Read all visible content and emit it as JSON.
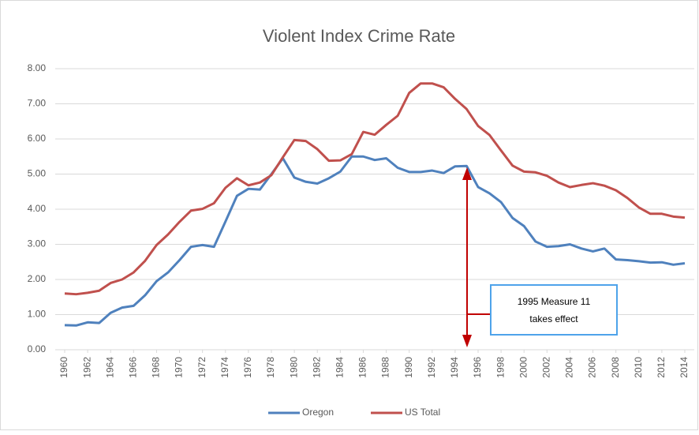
{
  "chart_data": {
    "type": "line",
    "title": "Violent Index Crime Rate",
    "x": [
      1960,
      1961,
      1962,
      1963,
      1964,
      1965,
      1966,
      1967,
      1968,
      1969,
      1970,
      1971,
      1972,
      1973,
      1974,
      1975,
      1976,
      1977,
      1978,
      1979,
      1980,
      1981,
      1982,
      1983,
      1984,
      1985,
      1986,
      1987,
      1988,
      1989,
      1990,
      1991,
      1992,
      1993,
      1994,
      1995,
      1996,
      1997,
      1998,
      1999,
      2000,
      2001,
      2002,
      2003,
      2004,
      2005,
      2006,
      2007,
      2008,
      2009,
      2010,
      2011,
      2012,
      2013,
      2014
    ],
    "series": [
      {
        "name": "Oregon",
        "color": "#4f81bd",
        "values": [
          0.7,
          0.69,
          0.78,
          0.76,
          1.05,
          1.2,
          1.25,
          1.55,
          1.95,
          2.2,
          2.55,
          2.93,
          2.98,
          2.93,
          3.65,
          4.38,
          4.58,
          4.56,
          5.0,
          5.45,
          4.9,
          4.78,
          4.73,
          4.88,
          5.07,
          5.5,
          5.5,
          5.4,
          5.45,
          5.18,
          5.06,
          5.06,
          5.1,
          5.03,
          5.22,
          5.23,
          4.63,
          4.45,
          4.2,
          3.75,
          3.52,
          3.08,
          2.93,
          2.95,
          3.0,
          2.88,
          2.8,
          2.88,
          2.57,
          2.55,
          2.52,
          2.48,
          2.49,
          2.42,
          2.46
        ]
      },
      {
        "name": "US Total",
        "color": "#c0504d",
        "values": [
          1.6,
          1.58,
          1.62,
          1.68,
          1.9,
          2.0,
          2.2,
          2.53,
          2.98,
          3.28,
          3.64,
          3.96,
          4.01,
          4.17,
          4.61,
          4.88,
          4.68,
          4.76,
          4.97,
          5.48,
          5.97,
          5.94,
          5.71,
          5.38,
          5.39,
          5.57,
          6.2,
          6.12,
          6.4,
          6.66,
          7.31,
          7.58,
          7.58,
          7.47,
          7.14,
          6.85,
          6.37,
          6.11,
          5.67,
          5.24,
          5.07,
          5.05,
          4.95,
          4.76,
          4.63,
          4.69,
          4.74,
          4.67,
          4.54,
          4.32,
          4.05,
          3.87,
          3.87,
          3.79,
          3.76
        ]
      }
    ],
    "xlim": [
      1960,
      2014
    ],
    "xticks": [
      1960,
      1962,
      1964,
      1966,
      1968,
      1970,
      1972,
      1974,
      1976,
      1978,
      1980,
      1982,
      1984,
      1986,
      1988,
      1990,
      1992,
      1994,
      1996,
      1998,
      2000,
      2002,
      2004,
      2006,
      2008,
      2010,
      2012,
      2014
    ],
    "ylim": [
      0,
      8
    ],
    "yticks": [
      {
        "value": 0,
        "label": "0.00"
      },
      {
        "value": 1,
        "label": "1.00"
      },
      {
        "value": 2,
        "label": "2.00"
      },
      {
        "value": 3,
        "label": "3.00"
      },
      {
        "value": 4,
        "label": "4.00"
      },
      {
        "value": 5,
        "label": "5.00"
      },
      {
        "value": 6,
        "label": "6.00"
      },
      {
        "value": 7,
        "label": "7.00"
      },
      {
        "value": 8,
        "label": "8.00"
      }
    ],
    "grid": true,
    "legend": "bottom",
    "annotation": [
      "1995 Measure 11",
      "takes effect"
    ]
  }
}
